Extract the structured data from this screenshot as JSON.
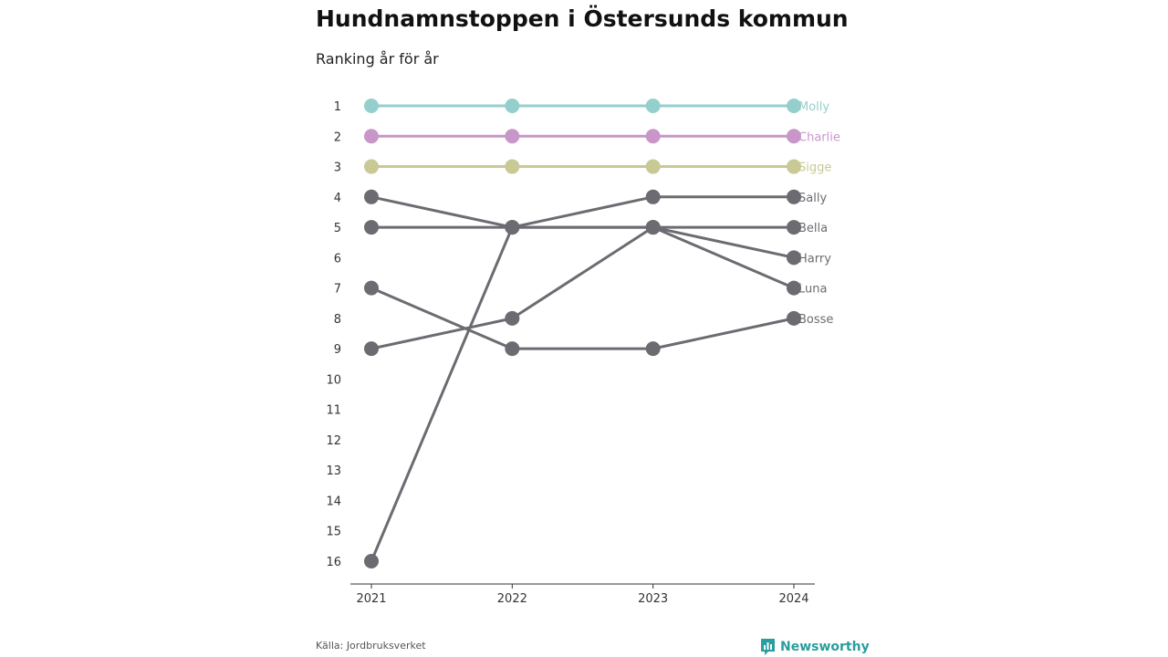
{
  "title": "Hundnamnstoppen i Östersunds kommun",
  "subtitle": "Ranking år för år",
  "source": "Källa: Jordbruksverket",
  "brand": "Newsworthy",
  "colors": {
    "highlight1": "#95cfcd",
    "highlight2": "#c896c9",
    "highlight3": "#c8c995",
    "default": "#6c6b71",
    "brand": "#2a9d9d"
  },
  "chart_data": {
    "type": "line",
    "title": "Hundnamnstoppen i Östersunds kommun",
    "subtitle": "Ranking år för år",
    "x": [
      "2021",
      "2022",
      "2023",
      "2024"
    ],
    "y_ticks": [
      "1",
      "2",
      "3",
      "4",
      "5",
      "6",
      "7",
      "8",
      "9",
      "10",
      "11",
      "12",
      "13",
      "14",
      "15",
      "16"
    ],
    "ylim": [
      1,
      16
    ],
    "y_inverted": true,
    "series": [
      {
        "name": "Molly",
        "color": "#95cfcd",
        "values": [
          1,
          1,
          1,
          1
        ]
      },
      {
        "name": "Charlie",
        "color": "#c896c9",
        "values": [
          2,
          2,
          2,
          2
        ]
      },
      {
        "name": "Sigge",
        "color": "#c8c995",
        "values": [
          3,
          3,
          3,
          3
        ]
      },
      {
        "name": "Sally",
        "color": "#6c6b71",
        "values": [
          4,
          5,
          4,
          4
        ]
      },
      {
        "name": "Bella",
        "color": "#6c6b71",
        "values": [
          5,
          5,
          5,
          5
        ]
      },
      {
        "name": "Harry",
        "color": "#6c6b71",
        "values": [
          16,
          5,
          5,
          6
        ]
      },
      {
        "name": "Luna",
        "color": "#6c6b71",
        "values": [
          9,
          8,
          5,
          7
        ]
      },
      {
        "name": "Bosse",
        "color": "#6c6b71",
        "values": [
          7,
          9,
          9,
          8
        ]
      }
    ]
  }
}
